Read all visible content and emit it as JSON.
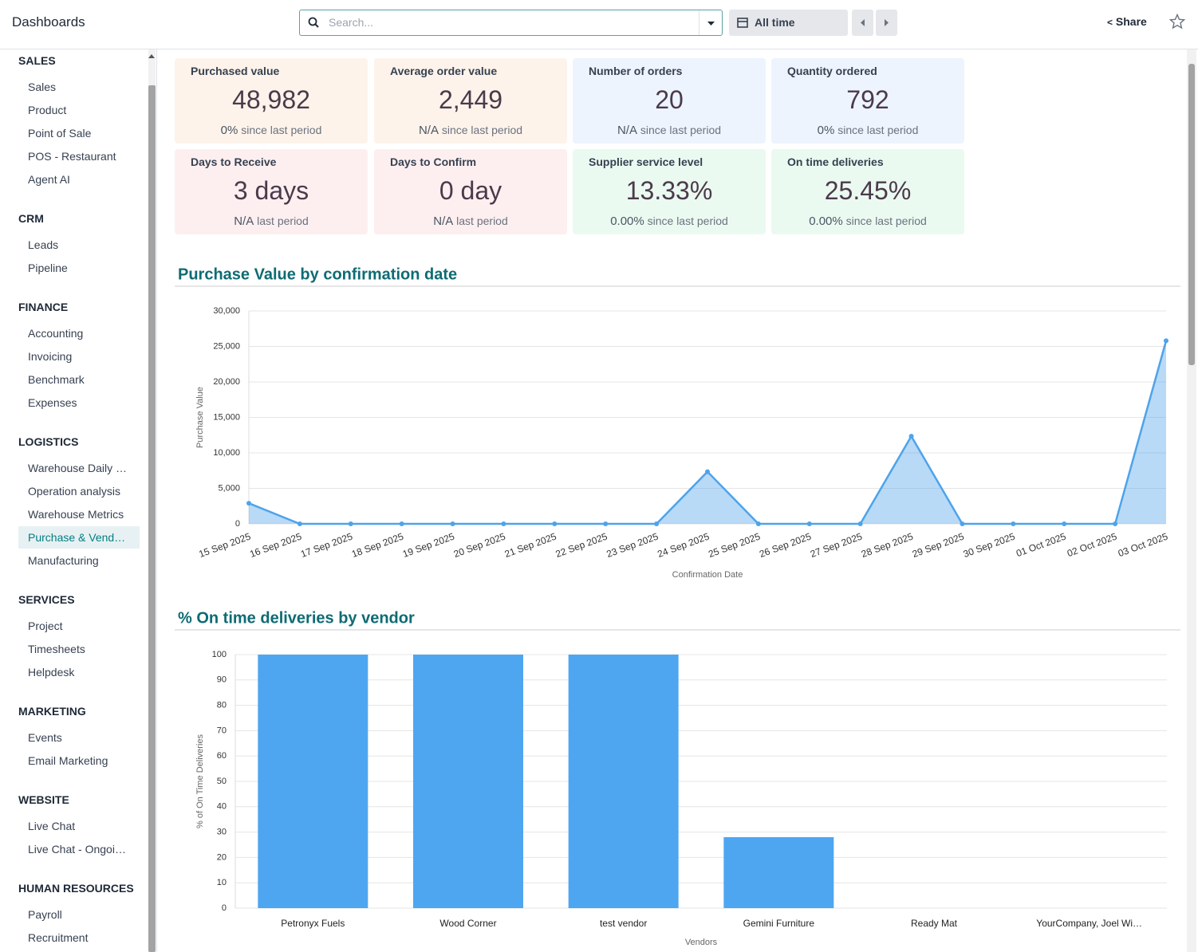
{
  "header": {
    "title": "Dashboards",
    "search_placeholder": "Search...",
    "date_filter": "All time",
    "share": "Share"
  },
  "sidebar": {
    "sections": [
      {
        "title": "SALES",
        "items": [
          "Sales",
          "Product",
          "Point of Sale",
          "POS - Restaurant",
          "Agent AI"
        ]
      },
      {
        "title": "CRM",
        "items": [
          "Leads",
          "Pipeline"
        ]
      },
      {
        "title": "FINANCE",
        "items": [
          "Accounting",
          "Invoicing",
          "Benchmark",
          "Expenses"
        ]
      },
      {
        "title": "LOGISTICS",
        "items": [
          "Warehouse Daily …",
          "Operation analysis",
          "Warehouse Metrics",
          "Purchase & Vend…",
          "Manufacturing"
        ],
        "selected_item": 3
      },
      {
        "title": "SERVICES",
        "items": [
          "Project",
          "Timesheets",
          "Helpdesk"
        ]
      },
      {
        "title": "MARKETING",
        "items": [
          "Events",
          "Email Marketing"
        ]
      },
      {
        "title": "WEBSITE",
        "items": [
          "Live Chat",
          "Live Chat - Ongoi…"
        ]
      },
      {
        "title": "HUMAN RESOURCES",
        "items": [
          "Payroll",
          "Recruitment"
        ]
      }
    ]
  },
  "kpis": [
    {
      "title": "Purchased value",
      "value": "48,982",
      "change": "0%",
      "change_text": "since last period",
      "color": "#fdf3ea"
    },
    {
      "title": "Average order value",
      "value": "2,449",
      "change": "N/A",
      "change_text": "since last period",
      "color": "#fdf3ea"
    },
    {
      "title": "Number of orders",
      "value": "20",
      "change": "N/A",
      "change_text": "since last period",
      "color": "#edf4fd"
    },
    {
      "title": "Quantity ordered",
      "value": "792",
      "change": "0%",
      "change_text": "since last period",
      "color": "#edf4fd"
    },
    {
      "title": "Days to Receive",
      "value": "3 days",
      "change": "N/A",
      "change_text": "last period",
      "color": "#fdeff0"
    },
    {
      "title": "Days to Confirm",
      "value": "0 day",
      "change": "N/A",
      "change_text": "last period",
      "color": "#fdeff0"
    },
    {
      "title": "Supplier service level",
      "value": "13.33%",
      "change": "0.00%",
      "change_text": "since last period",
      "color": "#ebfaf1"
    },
    {
      "title": "On time deliveries",
      "value": "25.45%",
      "change": "0.00%",
      "change_text": "since last period",
      "color": "#ebfaf1"
    }
  ],
  "chart_data": [
    {
      "type": "line",
      "title": "Purchase Value by confirmation date",
      "x_label": "Confirmation Date",
      "y_label": "Purchase Value",
      "categories": [
        "15 Sep 2025",
        "16 Sep 2025",
        "17 Sep 2025",
        "18 Sep 2025",
        "19 Sep 2025",
        "20 Sep 2025",
        "21 Sep 2025",
        "22 Sep 2025",
        "23 Sep 2025",
        "24 Sep 2025",
        "25 Sep 2025",
        "26 Sep 2025",
        "27 Sep 2025",
        "28 Sep 2025",
        "29 Sep 2025",
        "30 Sep 2025",
        "01 Oct 2025",
        "02 Oct 2025",
        "03 Oct 2025"
      ],
      "values": [
        2900,
        0,
        0,
        0,
        0,
        0,
        0,
        0,
        0,
        7350,
        0,
        0,
        0,
        12350,
        0,
        0,
        0,
        0,
        25800
      ],
      "color": "#4ea3ea",
      "area": true,
      "grid": true,
      "ylim": [
        0,
        30000
      ],
      "yticks": [
        0,
        {
          "value": 5000,
          "label": "5,000"
        },
        {
          "value": 10000,
          "label": "10,000"
        },
        {
          "value": 15000,
          "label": "15,000"
        },
        {
          "value": 20000,
          "label": "20,000"
        },
        {
          "value": 25000,
          "label": "25,000"
        },
        {
          "value": 30000,
          "label": "30,000"
        }
      ]
    },
    {
      "type": "bar",
      "title": "% On time deliveries by vendor",
      "x_label": "Vendors",
      "y_label": "% of On Time Deliveries",
      "categories": [
        "Petronyx Fuels",
        "Wood Corner",
        "test vendor",
        "Gemini Furniture",
        "Ready Mat",
        "YourCompany, Joel Wi…"
      ],
      "values": [
        100,
        100,
        100,
        28,
        0,
        0
      ],
      "color": "#4ea6f1",
      "grid": true,
      "ylim": [
        0,
        100
      ],
      "yticks": [
        0,
        10,
        20,
        30,
        40,
        50,
        60,
        70,
        80,
        90,
        100
      ]
    }
  ]
}
